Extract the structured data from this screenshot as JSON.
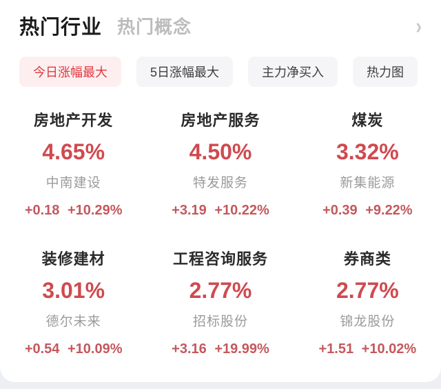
{
  "header": {
    "active_tab": "热门行业",
    "inactive_tab": "热门概念",
    "chevron": "›"
  },
  "filters": [
    {
      "label": "今日涨幅最大",
      "active": true
    },
    {
      "label": "5日涨幅最大",
      "active": false
    },
    {
      "label": "主力净买入",
      "active": false
    },
    {
      "label": "热力图",
      "active": false
    }
  ],
  "sectors": [
    {
      "name": "房地产开发",
      "percent": "4.65%",
      "stock": "中南建设",
      "change": "+0.18",
      "change_percent": "+10.29%"
    },
    {
      "name": "房地产服务",
      "percent": "4.50%",
      "stock": "特发服务",
      "change": "+3.19",
      "change_percent": "+10.22%"
    },
    {
      "name": "煤炭",
      "percent": "3.32%",
      "stock": "新集能源",
      "change": "+0.39",
      "change_percent": "+9.22%"
    },
    {
      "name": "装修建材",
      "percent": "3.01%",
      "stock": "德尔未来",
      "change": "+0.54",
      "change_percent": "+10.09%"
    },
    {
      "name": "工程咨询服务",
      "percent": "2.77%",
      "stock": "招标股份",
      "change": "+3.16",
      "change_percent": "+19.99%"
    },
    {
      "name": "券商类",
      "percent": "2.77%",
      "stock": "锦龙股份",
      "change": "+1.51",
      "change_percent": "+10.02%"
    }
  ],
  "colors": {
    "accent_red": "#cf4a4f",
    "pill_active_text": "#e0383f",
    "pill_active_bg": "#fdeff0",
    "muted_gray": "#9b9b9b"
  }
}
